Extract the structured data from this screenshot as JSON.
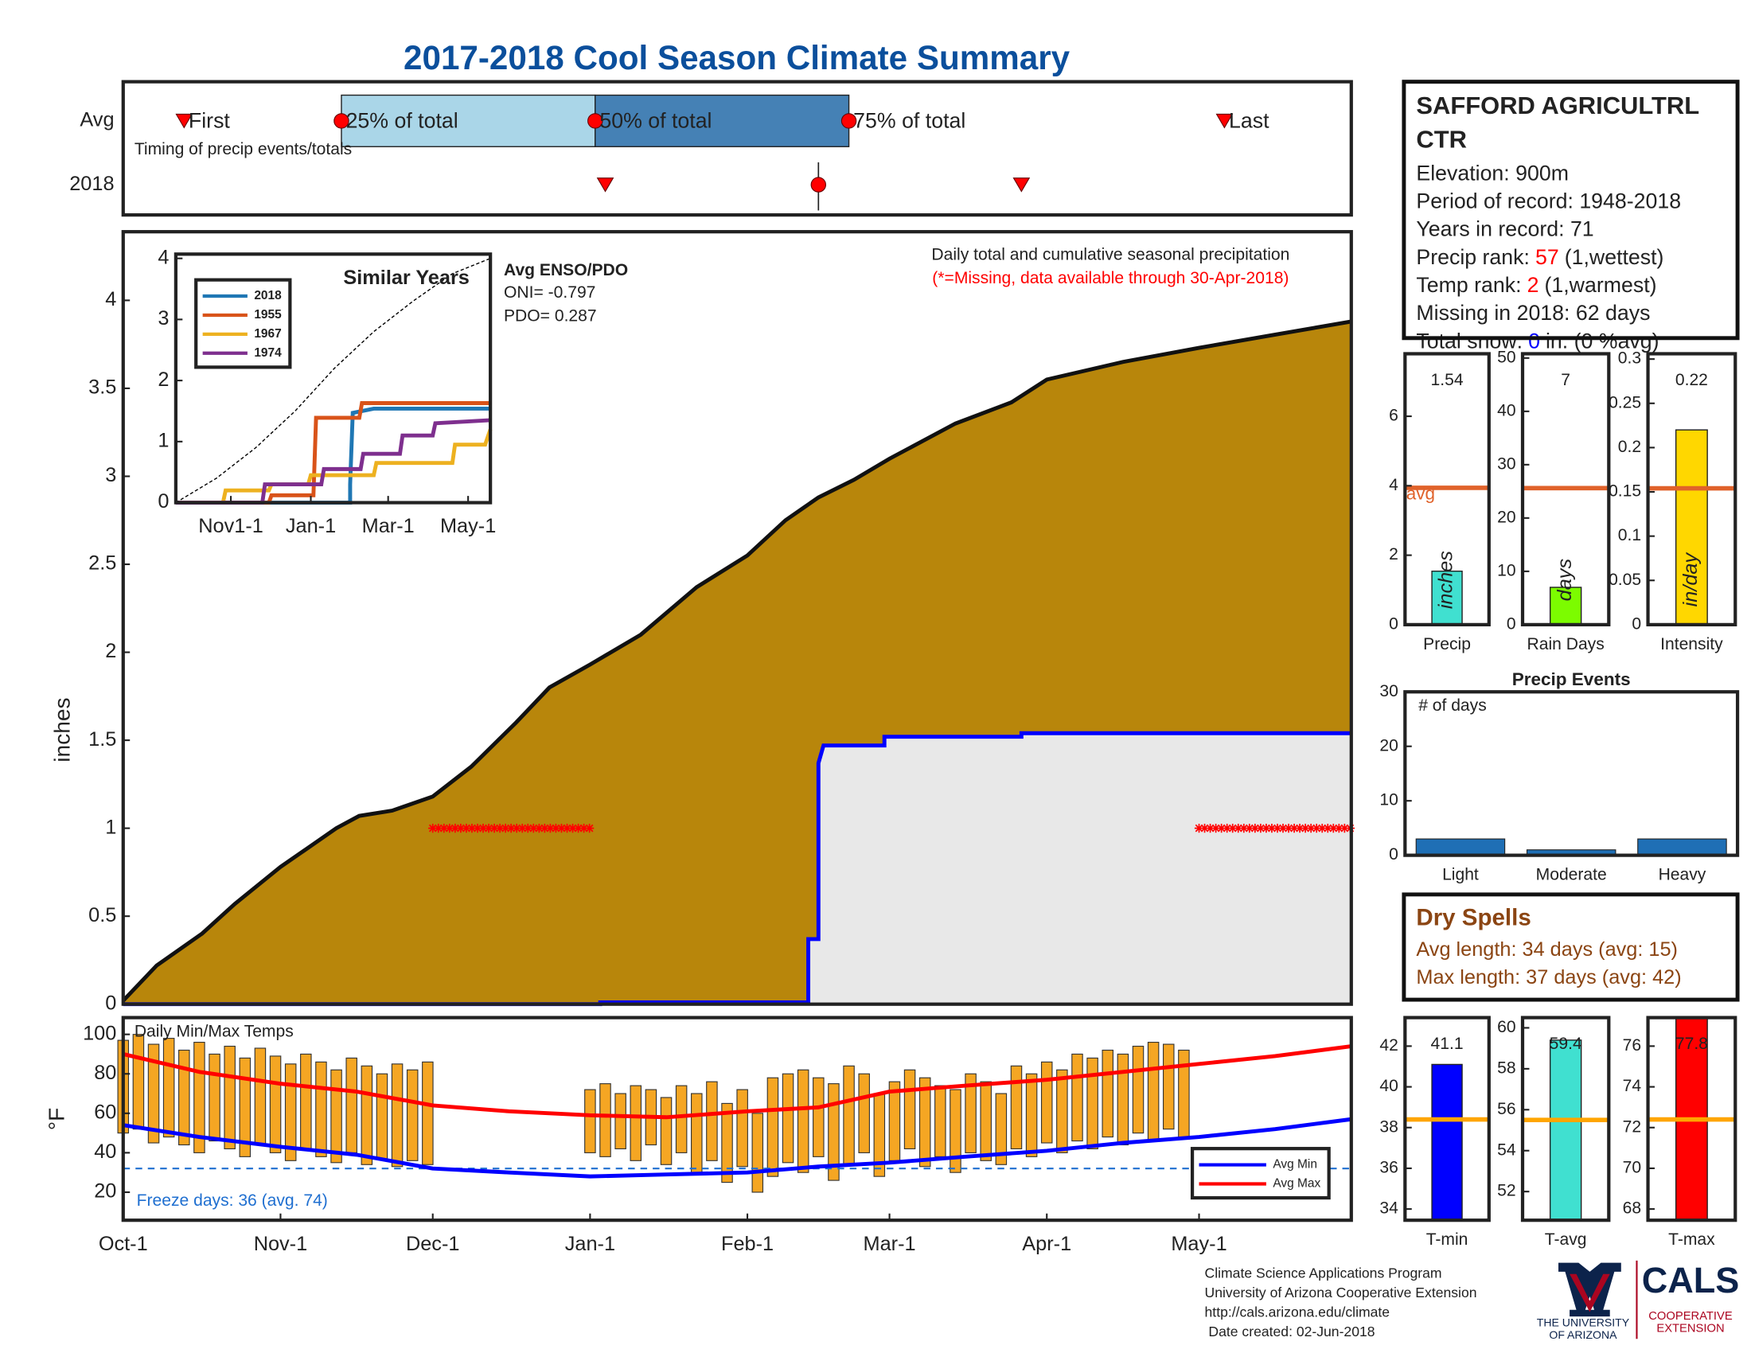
{
  "title": "2017-2018 Cool Season Climate Summary",
  "chart_data": [
    {
      "type": "timing",
      "rows": [
        "Avg",
        "2018"
      ],
      "note": "Timing of precip events/totals",
      "xlim": [
        0,
        242
      ],
      "box_colors": [
        "#aad6e8",
        "#4581b5"
      ],
      "marker_color": "#ff0000",
      "avg_markers": [
        {
          "label": "First",
          "value": 12,
          "shape": "triangle"
        },
        {
          "label": "25% of total",
          "value": 43,
          "shape": "circle"
        },
        {
          "label": "50% of total",
          "value": 93,
          "shape": "circle"
        },
        {
          "label": "75% of total",
          "value": 143,
          "shape": "circle"
        },
        {
          "label": "Last",
          "value": 217,
          "shape": "triangle"
        }
      ],
      "year_markers": [
        {
          "value": 95,
          "shape": "triangle"
        },
        {
          "value": 137,
          "shape": "circle"
        },
        {
          "value": 177,
          "shape": "triangle"
        }
      ]
    },
    {
      "type": "area_step",
      "ylabel": "inches",
      "xlim": [
        0,
        242
      ],
      "ylim": [
        0,
        4.39
      ],
      "yticks": [
        0,
        0.5,
        1,
        1.5,
        2,
        2.5,
        3,
        3.5,
        4
      ],
      "annotation": "Daily total and cumulative seasonal precipitation",
      "note": "(*=Missing, data available through 30-Apr-2018)",
      "enso": {
        "title": "Avg ENSO/PDO",
        "lines": [
          "ONI= -0.797",
          "PDO= 0.287"
        ]
      },
      "series": [
        {
          "color": "#b8860b",
          "line_color": "#111111",
          "x": [
            0,
            6.6,
            15.5,
            22,
            31,
            42,
            46.5,
            53,
            61,
            68.6,
            77.4,
            84,
            92,
            102,
            113,
            123,
            130.5,
            137,
            144,
            151,
            164,
            175,
            182,
            197,
            212,
            226,
            242
          ],
          "values": [
            0.02,
            0.22,
            0.4,
            0.57,
            0.78,
            1.0,
            1.07,
            1.1,
            1.18,
            1.35,
            1.6,
            1.8,
            1.93,
            2.1,
            2.37,
            2.55,
            2.75,
            2.88,
            2.98,
            3.1,
            3.3,
            3.42,
            3.55,
            3.65,
            3.73,
            3.8,
            3.88
          ]
        },
        {
          "color": "#e8e8e8",
          "line_color": "#0000ff",
          "x": [
            0,
            94,
            94,
            135,
            135,
            137,
            137,
            138,
            150,
            150,
            177,
            177,
            242
          ],
          "values": [
            0,
            0,
            0.01,
            0.01,
            0.37,
            0.37,
            1.37,
            1.47,
            1.47,
            1.52,
            1.52,
            1.54,
            1.54
          ]
        }
      ],
      "missing": {
        "value": 1,
        "color": "#ff0000",
        "ranges": [
          [
            61,
            92
          ],
          [
            212,
            242
          ]
        ]
      }
    },
    {
      "type": "step_line",
      "title": "Similar Years",
      "xlim": [
        -11,
        229
      ],
      "ylim": [
        0,
        4.07
      ],
      "yticks": [
        0,
        1,
        2,
        3,
        4
      ],
      "xticks": [
        {
          "value": 31,
          "label": "Nov1-1"
        },
        {
          "value": 92,
          "label": "Jan-1"
        },
        {
          "value": 151,
          "label": "Mar-1"
        },
        {
          "value": 212,
          "label": "May-1"
        }
      ],
      "legend": "upper left",
      "series": [
        {
          "name": "2018",
          "color": "#1f77b4",
          "x": [
            -11,
            122,
            122,
            124,
            140,
            229
          ],
          "values": [
            0,
            0,
            0.3,
            1.47,
            1.54,
            1.54
          ]
        },
        {
          "name": "1955",
          "color": "#d95319",
          "x": [
            -11,
            60,
            62,
            94,
            96,
            129,
            131,
            229
          ],
          "values": [
            0,
            0,
            0.12,
            0.12,
            1.39,
            1.39,
            1.63,
            1.63
          ]
        },
        {
          "name": "1967",
          "color": "#edb120",
          "x": [
            -11,
            25,
            27,
            60,
            62,
            90,
            92,
            140,
            142,
            200,
            202,
            225,
            229
          ],
          "values": [
            0,
            0,
            0.2,
            0.2,
            0.3,
            0.3,
            0.45,
            0.45,
            0.65,
            0.65,
            0.95,
            0.95,
            1.2
          ]
        },
        {
          "name": "1974",
          "color": "#7e2f8e",
          "x": [
            -11,
            55,
            57,
            100,
            102,
            130,
            132,
            160,
            162,
            185,
            187,
            229
          ],
          "values": [
            0,
            0,
            0.3,
            0.3,
            0.55,
            0.55,
            0.8,
            0.8,
            1.1,
            1.1,
            1.3,
            1.35
          ]
        },
        {
          "color": "#000000",
          "dash": true,
          "x": [
            -11,
            20,
            50,
            80,
            110,
            140,
            170,
            200,
            229
          ],
          "values": [
            0,
            0.4,
            0.9,
            1.5,
            2.2,
            2.8,
            3.3,
            3.75,
            4.0
          ]
        }
      ]
    },
    {
      "type": "range_bar_line",
      "title": "Daily Min/Max Temps",
      "ylabel": "°F",
      "xlim": [
        0,
        242
      ],
      "ylim": [
        5.8,
        108.5
      ],
      "yticks": [
        20,
        40,
        60,
        80,
        100
      ],
      "xticks": [
        {
          "value": 0,
          "label": "Oct-1"
        },
        {
          "value": 31,
          "label": "Nov-1"
        },
        {
          "value": 61,
          "label": "Dec-1"
        },
        {
          "value": 92,
          "label": "Jan-1"
        },
        {
          "value": 123,
          "label": "Feb-1"
        },
        {
          "value": 151,
          "label": "Mar-1"
        },
        {
          "value": 182,
          "label": "Apr-1"
        },
        {
          "value": 212,
          "label": "May-1"
        }
      ],
      "legend": "lower right",
      "freeze": {
        "value": 32,
        "label": "Freeze days: 36 (avg. 74)",
        "color": "#1f6fd0"
      },
      "bars": {
        "color": "#f5a623",
        "x": [
          0,
          3,
          6,
          9,
          12,
          15,
          18,
          21,
          24,
          27,
          30,
          33,
          36,
          39,
          42,
          45,
          48,
          51,
          54,
          57,
          60,
          92,
          95,
          98,
          101,
          104,
          107,
          110,
          113,
          116,
          119,
          122,
          125,
          128,
          131,
          134,
          137,
          140,
          143,
          146,
          149,
          152,
          155,
          158,
          161,
          164,
          167,
          170,
          173,
          176,
          179,
          182,
          185,
          188,
          191,
          194,
          197,
          200,
          203,
          206,
          209
        ],
        "min": [
          50,
          52,
          45,
          48,
          44,
          40,
          46,
          42,
          38,
          44,
          40,
          36,
          42,
          38,
          35,
          40,
          34,
          37,
          33,
          36,
          34,
          40,
          38,
          42,
          36,
          44,
          34,
          40,
          30,
          36,
          25,
          33,
          20,
          28,
          35,
          30,
          38,
          26,
          34,
          40,
          28,
          36,
          42,
          33,
          38,
          30,
          40,
          36,
          34,
          42,
          38,
          45,
          40,
          46,
          42,
          48,
          44,
          50,
          46,
          52,
          48
        ],
        "max": [
          97,
          100,
          95,
          98,
          92,
          96,
          90,
          94,
          88,
          93,
          89,
          85,
          90,
          86,
          82,
          88,
          84,
          80,
          85,
          82,
          86,
          72,
          75,
          70,
          74,
          72,
          68,
          74,
          70,
          76,
          65,
          72,
          60,
          78,
          80,
          82,
          78,
          75,
          84,
          80,
          70,
          76,
          82,
          78,
          74,
          72,
          80,
          76,
          70,
          84,
          80,
          86,
          82,
          90,
          88,
          92,
          90,
          94,
          96,
          95,
          92
        ]
      },
      "series": [
        {
          "name": "Avg Min",
          "color": "#0000ff",
          "x": [
            0,
            15,
            31,
            46,
            61,
            76,
            92,
            107,
            123,
            137,
            151,
            166,
            182,
            197,
            212,
            227,
            242
          ],
          "values": [
            54,
            48,
            43,
            39,
            32,
            30,
            28,
            29,
            30,
            33,
            35,
            38,
            41,
            45,
            48,
            52,
            57
          ]
        },
        {
          "name": "Avg Max",
          "color": "#ff0000",
          "x": [
            0,
            15,
            31,
            46,
            61,
            76,
            92,
            107,
            123,
            137,
            151,
            166,
            182,
            197,
            212,
            227,
            242
          ],
          "values": [
            90,
            81,
            75,
            71,
            64,
            61,
            59,
            58,
            61,
            63,
            71,
            74,
            77,
            81,
            85,
            89,
            94
          ]
        }
      ]
    },
    {
      "type": "single_bar",
      "category": "Precip",
      "value": 1.54,
      "unit": "inches",
      "color": "#40e0d0",
      "avg": 3.94,
      "avg_label": "avg",
      "avg_color": "#e0622a",
      "ylim": [
        0,
        7.8
      ],
      "yticks": [
        0,
        2,
        4,
        6
      ]
    },
    {
      "type": "single_bar",
      "category": "Rain Days",
      "value": 7,
      "unit": "days",
      "color": "#7cfc00",
      "avg": 25.6,
      "avg_color": "#e0622a",
      "ylim": [
        0,
        50.8
      ],
      "yticks": [
        0,
        10,
        20,
        30,
        40,
        50
      ]
    },
    {
      "type": "single_bar",
      "category": "Intensity",
      "value": 0.22,
      "unit": "in/day",
      "color": "#ffd700",
      "avg": 0.154,
      "avg_color": "#e0622a",
      "ylim": [
        0,
        0.306
      ],
      "yticks": [
        0,
        0.05,
        0.1,
        0.15,
        0.2,
        0.25,
        0.3
      ]
    },
    {
      "type": "bar",
      "title": "Precip Events",
      "ylabel": "# of days",
      "categories": [
        "Light",
        "Moderate",
        "Heavy"
      ],
      "values": [
        3,
        1,
        3
      ],
      "color": "#1f6fb5",
      "ylim": [
        0,
        30
      ],
      "yticks": [
        0,
        10,
        20,
        30
      ]
    },
    {
      "type": "single_bar",
      "category": "T-min",
      "value": 41.1,
      "color": "#0000ff",
      "avg": 38.4,
      "avg_color": "#ffa500",
      "ylim": [
        33.45,
        43.4
      ],
      "yticks": [
        34,
        36,
        38,
        40,
        42
      ]
    },
    {
      "type": "single_bar",
      "category": "T-avg",
      "value": 59.4,
      "color": "#40e0d0",
      "avg": 55.5,
      "avg_color": "#ffa500",
      "ylim": [
        50.6,
        60.5
      ],
      "yticks": [
        52,
        54,
        56,
        58,
        60
      ]
    },
    {
      "type": "single_bar",
      "category": "T-max",
      "value": 77.8,
      "color": "#ff0000",
      "avg": 72.4,
      "avg_color": "#ffa500",
      "ylim": [
        67.45,
        77.4
      ],
      "yticks": [
        68,
        70,
        72,
        74,
        76
      ]
    }
  ],
  "station": {
    "name": [
      "SAFFORD AGRICULTRL",
      "CTR"
    ],
    "lines": [
      {
        "parts": [
          "Elevation: 900m"
        ]
      },
      {
        "parts": [
          "Period of record: 1948-2018"
        ]
      },
      {
        "parts": [
          "Years in record: 71"
        ]
      },
      {
        "parts": [
          "Precip rank:",
          "57",
          "(1,wettest)"
        ],
        "color": "#ff0000"
      },
      {
        "parts": [
          "Temp rank:",
          "2",
          "(1,warmest)"
        ],
        "color": "#ff0000"
      },
      {
        "parts": [
          "Missing in 2018: 62 days"
        ]
      },
      {
        "parts": [
          "Total snow:",
          "0",
          "in. (0 %avg)"
        ],
        "color": "#0000ff"
      }
    ]
  },
  "dry_spells": {
    "title": "Dry Spells",
    "lines": [
      "Avg length: 34 days (avg: 15)",
      "Max length: 37 days (avg: 42)"
    ]
  },
  "footer": {
    "lines": [
      "Climate Science Applications Program",
      "University of Arizona Cooperative Extension",
      "http://cals.arizona.edu/climate",
      " Date created: 02-Jun-2018"
    ],
    "logo_university": [
      "THE UNIVERSITY",
      "OF ARIZONA"
    ],
    "logo_cals": "CALS",
    "logo_extension": [
      "COOPERATIVE",
      "EXTENSION"
    ]
  }
}
